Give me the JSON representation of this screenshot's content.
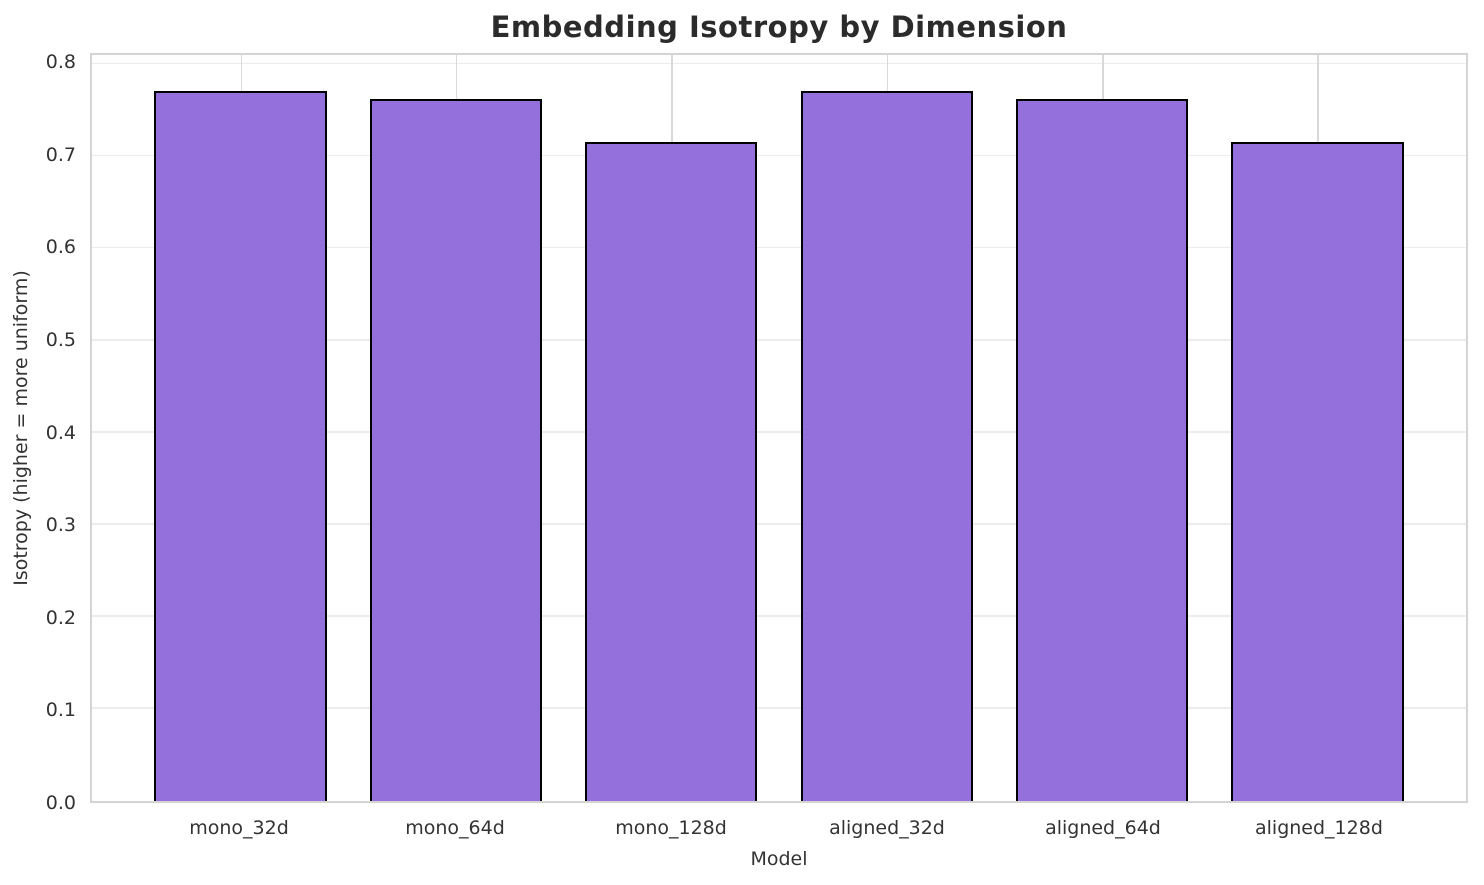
{
  "chart_data": {
    "type": "bar",
    "title": "Embedding Isotropy by Dimension",
    "xlabel": "Model",
    "ylabel": "Isotropy (higher = more uniform)",
    "categories": [
      "mono_32d",
      "mono_64d",
      "mono_128d",
      "aligned_32d",
      "aligned_64d",
      "aligned_128d"
    ],
    "values": [
      0.771,
      0.762,
      0.716,
      0.771,
      0.762,
      0.716
    ],
    "ylim": [
      0,
      0.81
    ],
    "yticks": [
      0.0,
      0.1,
      0.2,
      0.3,
      0.4,
      0.5,
      0.6,
      0.7,
      0.8
    ],
    "ytick_labels": [
      "0.0",
      "0.1",
      "0.2",
      "0.3",
      "0.4",
      "0.5",
      "0.6",
      "0.7",
      "0.8"
    ],
    "xlim": [
      -0.69,
      5.69
    ],
    "bar_width_units": 0.8,
    "grid": true,
    "legend": "none",
    "colors": {
      "bar_fill": "#9370DB",
      "bar_edge": "#000000",
      "hgrid": "#ececec",
      "vgrid": "#d9d9d9",
      "spine": "#d4d4d4",
      "text": "#333333",
      "title_text": "#2b2b2b",
      "background": "#ffffff"
    }
  }
}
